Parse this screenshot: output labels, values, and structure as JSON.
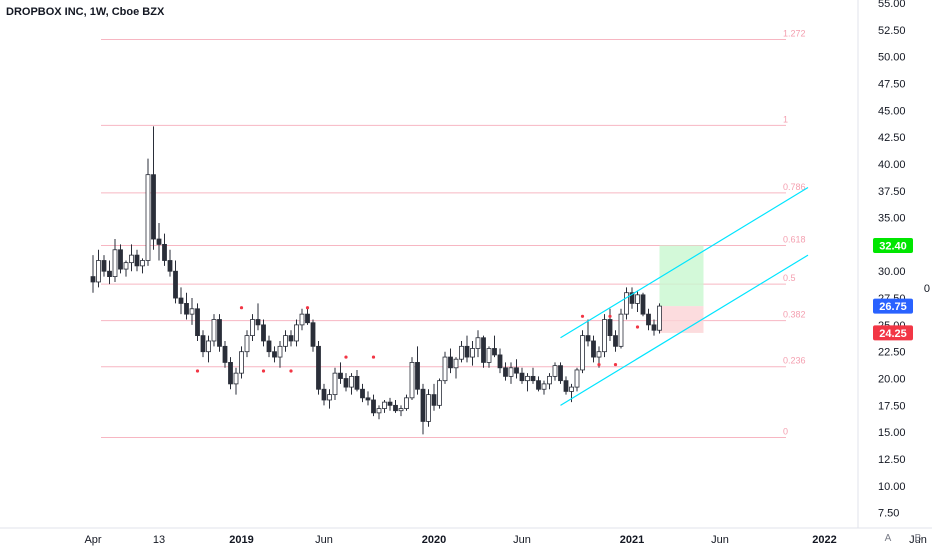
{
  "header": {
    "title": "DROPBOX INC, 1W, Cboe BZX"
  },
  "side_label": "0",
  "scale_buttons": {
    "auto": "A",
    "log": "B"
  },
  "chart_data": {
    "type": "candlestick",
    "symbol": "DROPBOX INC",
    "interval": "1W",
    "exchange": "Cboe BZX",
    "ylim": [
      7.0,
      55.0
    ],
    "yticks": [
      "55.00",
      "52.50",
      "50.00",
      "47.50",
      "45.00",
      "42.50",
      "40.00",
      "37.50",
      "35.00",
      "32.50",
      "30.00",
      "27.50",
      "25.00",
      "22.50",
      "20.00",
      "17.50",
      "15.00",
      "12.50",
      "10.00",
      "7.50"
    ],
    "xticks": [
      {
        "label": "Apr",
        "bold": false,
        "t": 0
      },
      {
        "label": "13",
        "bold": false,
        "t": 12
      },
      {
        "label": "2019",
        "bold": true,
        "t": 27
      },
      {
        "label": "Jun",
        "bold": false,
        "t": 42
      },
      {
        "label": "2020",
        "bold": true,
        "t": 62
      },
      {
        "label": "Jun",
        "bold": false,
        "t": 78
      },
      {
        "label": "2021",
        "bold": true,
        "t": 98
      },
      {
        "label": "Jun",
        "bold": false,
        "t": 114
      },
      {
        "label": "2022",
        "bold": true,
        "t": 133
      },
      {
        "label": "Jun",
        "bold": false,
        "t": 150
      }
    ],
    "ohlc": [
      [
        29.5,
        31.5,
        28.0,
        29.0
      ],
      [
        29.0,
        32.0,
        28.5,
        31.0
      ],
      [
        31.0,
        31.5,
        29.5,
        30.0
      ],
      [
        30.0,
        31.0,
        28.8,
        29.5
      ],
      [
        29.5,
        33.0,
        29.0,
        32.0
      ],
      [
        32.0,
        32.5,
        29.8,
        30.2
      ],
      [
        30.2,
        31.0,
        29.5,
        30.8
      ],
      [
        30.8,
        32.5,
        30.0,
        31.5
      ],
      [
        31.5,
        32.0,
        30.0,
        30.5
      ],
      [
        30.5,
        31.2,
        29.8,
        31.0
      ],
      [
        31.0,
        40.5,
        30.5,
        39.0
      ],
      [
        39.0,
        43.5,
        32.0,
        33.0
      ],
      [
        33.0,
        34.5,
        31.0,
        32.5
      ],
      [
        32.5,
        33.5,
        30.5,
        31.0
      ],
      [
        31.0,
        32.0,
        29.5,
        30.0
      ],
      [
        30.0,
        31.0,
        27.0,
        27.5
      ],
      [
        27.5,
        28.5,
        26.0,
        27.0
      ],
      [
        27.0,
        28.0,
        25.5,
        26.0
      ],
      [
        26.0,
        27.5,
        25.0,
        26.5
      ],
      [
        26.5,
        27.0,
        23.5,
        24.0
      ],
      [
        24.0,
        24.5,
        22.0,
        22.5
      ],
      [
        22.5,
        24.0,
        21.5,
        23.5
      ],
      [
        23.5,
        26.0,
        23.0,
        25.5
      ],
      [
        25.5,
        26.0,
        22.5,
        23.0
      ],
      [
        23.0,
        23.5,
        21.0,
        21.5
      ],
      [
        21.5,
        22.0,
        19.0,
        19.5
      ],
      [
        19.5,
        21.0,
        18.5,
        20.5
      ],
      [
        20.5,
        23.0,
        20.0,
        22.5
      ],
      [
        22.5,
        24.5,
        22.0,
        24.0
      ],
      [
        24.0,
        26.0,
        23.5,
        25.5
      ],
      [
        25.5,
        27.0,
        24.5,
        25.0
      ],
      [
        25.0,
        25.5,
        23.0,
        23.5
      ],
      [
        23.5,
        24.0,
        22.0,
        22.5
      ],
      [
        22.5,
        23.0,
        21.5,
        22.0
      ],
      [
        22.0,
        23.5,
        21.0,
        23.0
      ],
      [
        23.0,
        24.5,
        22.5,
        24.0
      ],
      [
        24.0,
        24.5,
        23.0,
        23.5
      ],
      [
        23.5,
        25.5,
        23.0,
        25.0
      ],
      [
        25.0,
        26.5,
        24.5,
        26.0
      ],
      [
        26.0,
        26.5,
        25.0,
        25.2
      ],
      [
        25.2,
        25.5,
        22.5,
        23.0
      ],
      [
        23.0,
        23.5,
        18.5,
        19.0
      ],
      [
        19.0,
        19.5,
        17.5,
        18.0
      ],
      [
        18.0,
        19.0,
        17.2,
        18.5
      ],
      [
        18.5,
        21.0,
        18.0,
        20.5
      ],
      [
        20.5,
        21.5,
        19.5,
        20.0
      ],
      [
        20.0,
        20.5,
        18.8,
        19.2
      ],
      [
        19.2,
        20.5,
        18.5,
        20.2
      ],
      [
        20.2,
        20.8,
        18.8,
        19.0
      ],
      [
        19.0,
        19.5,
        17.8,
        18.2
      ],
      [
        18.2,
        18.8,
        17.5,
        18.0
      ],
      [
        18.0,
        18.5,
        16.5,
        16.8
      ],
      [
        16.8,
        17.5,
        16.2,
        17.2
      ],
      [
        17.2,
        18.0,
        16.8,
        17.8
      ],
      [
        17.8,
        18.2,
        17.0,
        17.5
      ],
      [
        17.5,
        18.0,
        16.8,
        17.0
      ],
      [
        17.0,
        17.5,
        16.5,
        17.2
      ],
      [
        17.2,
        18.5,
        17.0,
        18.2
      ],
      [
        18.2,
        22.0,
        18.0,
        21.5
      ],
      [
        21.5,
        23.0,
        18.5,
        19.0
      ],
      [
        19.0,
        19.5,
        14.8,
        16.0
      ],
      [
        16.0,
        19.0,
        15.5,
        18.5
      ],
      [
        18.5,
        19.5,
        17.0,
        17.5
      ],
      [
        17.5,
        20.0,
        17.2,
        19.8
      ],
      [
        19.8,
        22.5,
        19.5,
        22.0
      ],
      [
        22.0,
        22.8,
        20.5,
        21.0
      ],
      [
        21.0,
        22.0,
        20.0,
        21.8
      ],
      [
        21.8,
        23.5,
        21.5,
        23.0
      ],
      [
        23.0,
        24.0,
        21.5,
        22.0
      ],
      [
        22.0,
        23.5,
        21.2,
        22.8
      ],
      [
        22.8,
        24.5,
        22.0,
        23.8
      ],
      [
        23.8,
        24.0,
        21.0,
        21.5
      ],
      [
        21.5,
        23.0,
        21.0,
        22.8
      ],
      [
        22.8,
        24.0,
        22.0,
        22.2
      ],
      [
        22.2,
        22.8,
        20.5,
        21.0
      ],
      [
        21.0,
        21.5,
        19.8,
        20.2
      ],
      [
        20.2,
        21.5,
        19.5,
        21.0
      ],
      [
        21.0,
        21.8,
        20.0,
        20.5
      ],
      [
        20.5,
        21.0,
        19.5,
        19.8
      ],
      [
        19.8,
        20.5,
        18.8,
        20.2
      ],
      [
        20.2,
        21.0,
        19.5,
        19.8
      ],
      [
        19.8,
        20.2,
        18.8,
        19.0
      ],
      [
        19.0,
        19.8,
        18.5,
        19.5
      ],
      [
        19.5,
        20.5,
        19.0,
        20.2
      ],
      [
        20.2,
        21.5,
        19.8,
        21.2
      ],
      [
        21.2,
        21.5,
        19.5,
        19.8
      ],
      [
        19.8,
        20.2,
        18.5,
        18.8
      ],
      [
        18.8,
        19.5,
        17.8,
        19.2
      ],
      [
        19.2,
        21.0,
        18.8,
        20.8
      ],
      [
        20.8,
        24.5,
        20.5,
        24.0
      ],
      [
        24.0,
        25.5,
        23.0,
        23.5
      ],
      [
        23.5,
        24.0,
        21.5,
        22.0
      ],
      [
        22.0,
        23.0,
        21.0,
        22.5
      ],
      [
        22.5,
        26.0,
        22.0,
        25.5
      ],
      [
        25.5,
        26.5,
        23.5,
        24.0
      ],
      [
        24.0,
        24.5,
        22.5,
        23.0
      ],
      [
        23.0,
        26.5,
        22.8,
        26.0
      ],
      [
        26.0,
        28.5,
        25.5,
        28.0
      ],
      [
        28.0,
        28.5,
        26.5,
        27.0
      ],
      [
        27.0,
        28.2,
        26.2,
        27.8
      ],
      [
        27.8,
        28.0,
        25.8,
        26.0
      ],
      [
        26.0,
        26.5,
        24.5,
        25.0
      ],
      [
        25.0,
        25.5,
        24.0,
        24.5
      ],
      [
        24.5,
        27.0,
        24.2,
        26.75
      ]
    ],
    "fib_levels": [
      {
        "label": "1.272",
        "value": 51.6
      },
      {
        "label": "1",
        "value": 43.6
      },
      {
        "label": "0.786",
        "value": 37.3
      },
      {
        "label": "0.618",
        "value": 32.4
      },
      {
        "label": "0.5",
        "value": 28.8
      },
      {
        "label": "0.382",
        "value": 25.4
      },
      {
        "label": "0.236",
        "value": 21.1
      },
      {
        "label": "0",
        "value": 14.5
      }
    ],
    "fib_x_range": [
      0,
      126
    ],
    "channel": {
      "upper": [
        [
          85,
          23.8
        ],
        [
          130,
          37.8
        ]
      ],
      "lower": [
        [
          85,
          17.5
        ],
        [
          130,
          31.5
        ]
      ],
      "color": "#00e5ff"
    },
    "position": {
      "t_start": 103,
      "t_end": 111,
      "entry": 26.75,
      "target": 32.4,
      "stop": 24.25,
      "profit_color": "#c8f7d0",
      "loss_color": "#fbd3d6"
    },
    "markers": [
      {
        "t": 19,
        "v": 20.7
      },
      {
        "t": 27,
        "v": 26.6
      },
      {
        "t": 31,
        "v": 20.7
      },
      {
        "t": 36,
        "v": 20.7
      },
      {
        "t": 39,
        "v": 26.6
      },
      {
        "t": 46,
        "v": 22.0
      },
      {
        "t": 51,
        "v": 22.0
      },
      {
        "t": 89,
        "v": 25.8
      },
      {
        "t": 92,
        "v": 21.3
      },
      {
        "t": 94,
        "v": 25.8
      },
      {
        "t": 95,
        "v": 21.3
      },
      {
        "t": 99,
        "v": 24.8
      }
    ],
    "price_tags": [
      {
        "label": "32.40",
        "value": 32.4,
        "color": "#00e600"
      },
      {
        "label": "26.75",
        "value": 26.75,
        "color": "#2962ff"
      },
      {
        "label": "24.25",
        "value": 24.25,
        "color": "#f23645"
      }
    ],
    "colors": {
      "candle_up_fill": "#ffffff",
      "candle_down_fill": "#2a2e39",
      "candle_outline": "#2a2e39",
      "fib_line": "#f7b6c2",
      "marker": "#f23645"
    }
  }
}
